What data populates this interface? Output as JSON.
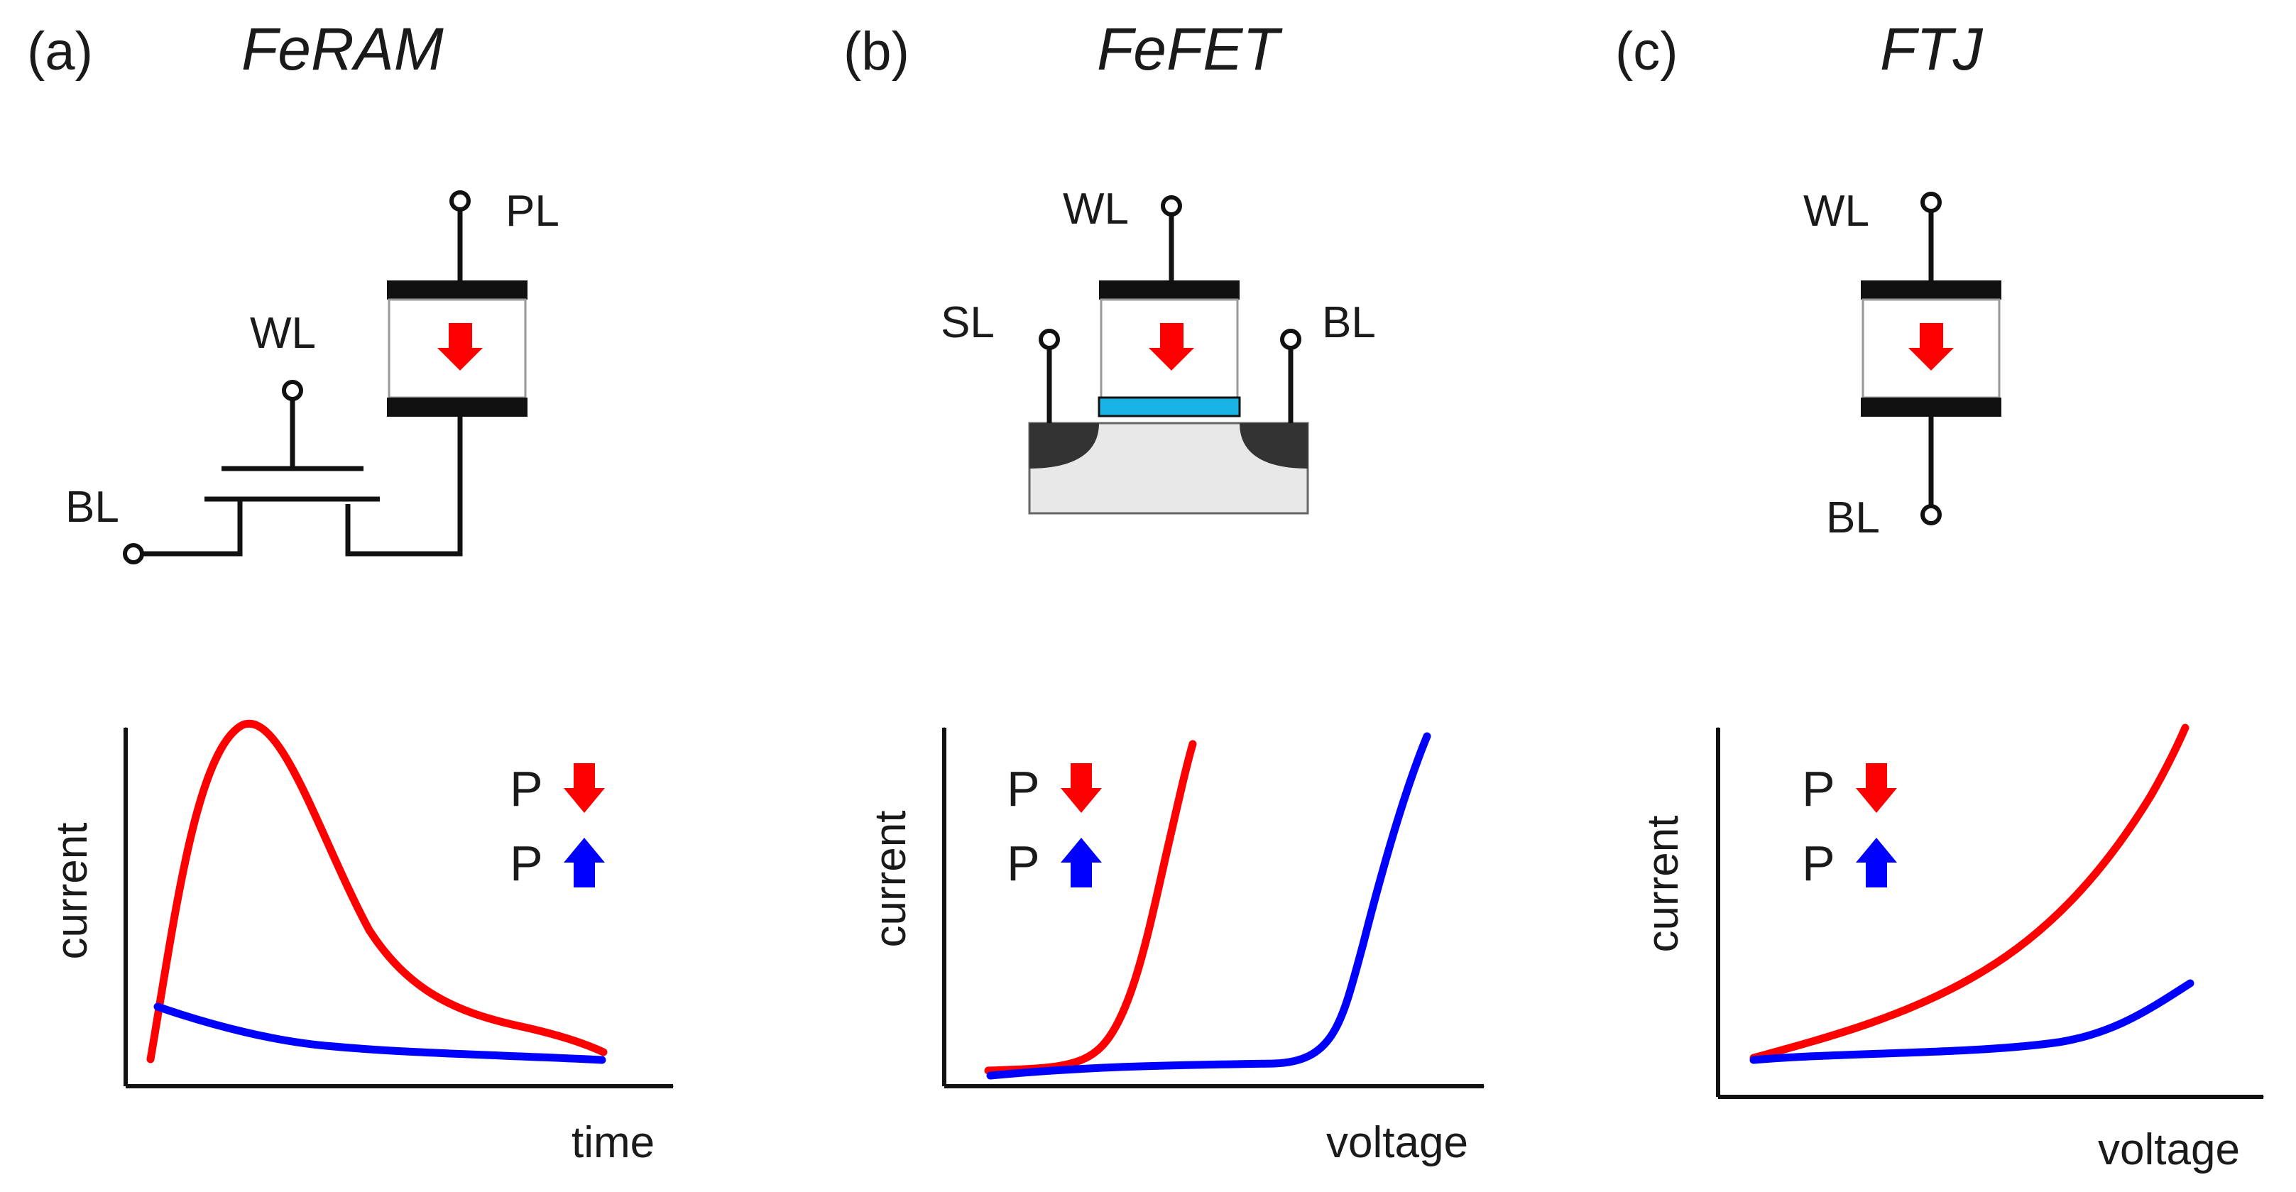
{
  "colors": {
    "polarization_down": "#ff0000",
    "polarization_up": "#0000ff",
    "interface_layer": "#19b3e6",
    "substrate": "#e8e8e8",
    "doped_region": "#333333"
  },
  "panels": [
    {
      "label": "(a)",
      "title": "FeRAM",
      "nodes": {
        "pl": "PL",
        "wl": "WL",
        "bl": "BL"
      },
      "plot": {
        "ylabel": "current",
        "xlabel": "time",
        "legend_p_down": "P",
        "legend_p_up": "P"
      }
    },
    {
      "label": "(b)",
      "title": "FeFET",
      "nodes": {
        "wl": "WL",
        "sl": "SL",
        "bl": "BL"
      },
      "plot": {
        "ylabel": "current",
        "xlabel": "voltage",
        "legend_p_down": "P",
        "legend_p_up": "P"
      }
    },
    {
      "label": "(c)",
      "title": "FTJ",
      "nodes": {
        "wl": "WL",
        "bl": "BL"
      },
      "plot": {
        "ylabel": "current",
        "xlabel": "voltage",
        "legend_p_down": "P",
        "legend_p_up": "P"
      }
    }
  ],
  "icons": {
    "down": "arrow-down-icon",
    "up": "arrow-up-icon"
  }
}
